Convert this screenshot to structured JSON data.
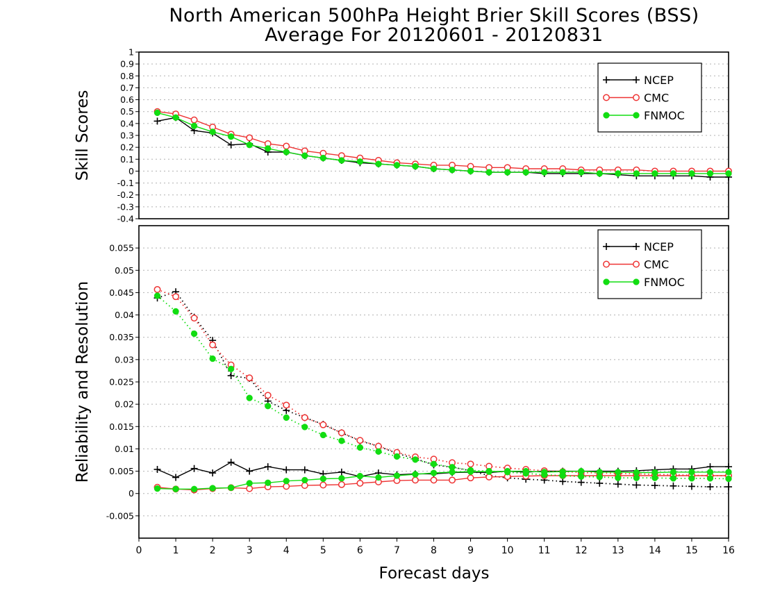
{
  "title_line1": "North American 500hPa Height Brier Skill Scores (BSS)",
  "title_line2": "Average For 20120601 - 20120831",
  "xlabel": "Forecast days",
  "colors": {
    "NCEP": "#000000",
    "CMC": "#ee3333",
    "FNMOC": "#11dd11"
  },
  "chart_data": [
    {
      "type": "line",
      "ylabel": "Skill Scores",
      "xlim": [
        0,
        16
      ],
      "ylim": [
        -0.4,
        1
      ],
      "yticks": [
        "-0.4",
        "-0.3",
        "-0.2",
        "-0.1",
        "0",
        "0.1",
        "0.2",
        "0.3",
        "0.4",
        "0.5",
        "0.6",
        "0.7",
        "0.8",
        "0.9",
        "1"
      ],
      "grid": true,
      "legend_position": "top-right",
      "x": [
        0.5,
        1,
        1.5,
        2,
        2.5,
        3,
        3.5,
        4,
        4.5,
        5,
        5.5,
        6,
        6.5,
        7,
        7.5,
        8,
        8.5,
        9,
        9.5,
        10,
        10.5,
        11,
        11.5,
        12,
        12.5,
        13,
        13.5,
        14,
        14.5,
        15,
        15.5,
        16
      ],
      "series": [
        {
          "name": "NCEP",
          "marker": "plus",
          "values": [
            0.42,
            0.45,
            0.34,
            0.32,
            0.22,
            0.23,
            0.16,
            0.16,
            0.13,
            0.11,
            0.09,
            0.07,
            0.06,
            0.05,
            0.04,
            0.02,
            0.01,
            0.0,
            -0.01,
            -0.01,
            -0.01,
            -0.02,
            -0.02,
            -0.02,
            -0.02,
            -0.03,
            -0.04,
            -0.04,
            -0.04,
            -0.04,
            -0.05,
            -0.05
          ]
        },
        {
          "name": "CMC",
          "marker": "open-circle",
          "values": [
            0.5,
            0.48,
            0.43,
            0.37,
            0.31,
            0.28,
            0.23,
            0.21,
            0.17,
            0.15,
            0.13,
            0.11,
            0.09,
            0.07,
            0.06,
            0.05,
            0.05,
            0.04,
            0.03,
            0.03,
            0.02,
            0.02,
            0.02,
            0.01,
            0.01,
            0.01,
            0.01,
            0.0,
            0.0,
            0.0,
            0.0,
            0.0
          ]
        },
        {
          "name": "FNMOC",
          "marker": "filled-circle",
          "values": [
            0.49,
            0.45,
            0.38,
            0.33,
            0.29,
            0.22,
            0.19,
            0.16,
            0.13,
            0.11,
            0.09,
            0.08,
            0.06,
            0.05,
            0.04,
            0.02,
            0.01,
            0.0,
            -0.01,
            -0.01,
            -0.01,
            -0.01,
            -0.01,
            -0.01,
            -0.02,
            -0.02,
            -0.02,
            -0.02,
            -0.02,
            -0.02,
            -0.02,
            -0.02
          ]
        }
      ]
    },
    {
      "type": "line",
      "ylabel": "Reliability and Resolution",
      "xlim": [
        0,
        16
      ],
      "ylim": [
        -0.01,
        0.06
      ],
      "yticks": [
        "-0.005",
        "0",
        "0.005",
        "0.01",
        "0.015",
        "0.02",
        "0.025",
        "0.03",
        "0.035",
        "0.04",
        "0.045",
        "0.05",
        "0.055"
      ],
      "xticks": [
        "0",
        "1",
        "2",
        "3",
        "4",
        "5",
        "6",
        "7",
        "8",
        "9",
        "10",
        "11",
        "12",
        "13",
        "14",
        "15",
        "16"
      ],
      "grid": true,
      "legend_position": "top-right",
      "x": [
        0.5,
        1,
        1.5,
        2,
        2.5,
        3,
        3.5,
        4,
        4.5,
        5,
        5.5,
        6,
        6.5,
        7,
        7.5,
        8,
        8.5,
        9,
        9.5,
        10,
        10.5,
        11,
        11.5,
        12,
        12.5,
        13,
        13.5,
        14,
        14.5,
        15,
        15.5,
        16
      ],
      "series": [
        {
          "name": "NCEP",
          "marker": "plus",
          "line": "solid",
          "values": [
            0.0054,
            0.0036,
            0.0056,
            0.0046,
            0.007,
            0.005,
            0.006,
            0.0053,
            0.0053,
            0.0044,
            0.0048,
            0.0038,
            0.0046,
            0.0042,
            0.0044,
            0.0044,
            0.0047,
            0.0048,
            0.0047,
            0.005,
            0.0048,
            0.005,
            0.005,
            0.005,
            0.005,
            0.005,
            0.0051,
            0.0053,
            0.0055,
            0.0055,
            0.006,
            0.006
          ]
        },
        {
          "name": "NCEP",
          "marker": "plus",
          "line": "dotted",
          "values": [
            0.0438,
            0.0452,
            0.0395,
            0.0343,
            0.0264,
            0.0258,
            0.0207,
            0.0186,
            0.017,
            0.0155,
            0.0136,
            0.0118,
            0.0106,
            0.009,
            0.0078,
            0.0064,
            0.0059,
            0.0051,
            0.004,
            0.0035,
            0.0032,
            0.003,
            0.0027,
            0.0025,
            0.0023,
            0.0021,
            0.0019,
            0.0018,
            0.0017,
            0.0016,
            0.0015,
            0.0015
          ]
        },
        {
          "name": "CMC",
          "marker": "open-circle",
          "line": "solid",
          "values": [
            0.0014,
            0.001,
            0.0008,
            0.0011,
            0.0013,
            0.0011,
            0.0015,
            0.0016,
            0.0018,
            0.0019,
            0.002,
            0.0023,
            0.0026,
            0.0029,
            0.003,
            0.003,
            0.003,
            0.0035,
            0.0037,
            0.0038,
            0.0039,
            0.004,
            0.004,
            0.004,
            0.004,
            0.004,
            0.004,
            0.004,
            0.004,
            0.004,
            0.004,
            0.004
          ]
        },
        {
          "name": "CMC",
          "marker": "open-circle",
          "line": "dotted",
          "values": [
            0.0457,
            0.0441,
            0.0393,
            0.0333,
            0.0288,
            0.0259,
            0.022,
            0.0198,
            0.017,
            0.0154,
            0.0136,
            0.0119,
            0.0106,
            0.0092,
            0.0082,
            0.0077,
            0.0069,
            0.0066,
            0.0061,
            0.0057,
            0.0054,
            0.0051,
            0.0049,
            0.0047,
            0.0046,
            0.0045,
            0.0044,
            0.0043,
            0.0042,
            0.0041,
            0.004,
            0.004
          ]
        },
        {
          "name": "FNMOC",
          "marker": "filled-circle",
          "line": "solid",
          "values": [
            0.0011,
            0.001,
            0.001,
            0.0012,
            0.0013,
            0.0023,
            0.0024,
            0.0028,
            0.003,
            0.0033,
            0.0034,
            0.0039,
            0.0036,
            0.004,
            0.0043,
            0.0046,
            0.0048,
            0.0049,
            0.0049,
            0.005,
            0.005,
            0.0048,
            0.0049,
            0.005,
            0.0048,
            0.0048,
            0.0047,
            0.0047,
            0.0048,
            0.0048,
            0.0048,
            0.0048
          ]
        },
        {
          "name": "FNMOC",
          "marker": "filled-circle",
          "line": "dotted",
          "values": [
            0.0443,
            0.0408,
            0.0358,
            0.0302,
            0.0279,
            0.0214,
            0.0196,
            0.017,
            0.0149,
            0.0131,
            0.0118,
            0.0103,
            0.0094,
            0.0083,
            0.0076,
            0.0066,
            0.0059,
            0.0052,
            0.005,
            0.0048,
            0.0045,
            0.0042,
            0.004,
            0.0038,
            0.0037,
            0.0035,
            0.0035,
            0.0035,
            0.0034,
            0.0034,
            0.0034,
            0.0033
          ]
        }
      ]
    }
  ]
}
